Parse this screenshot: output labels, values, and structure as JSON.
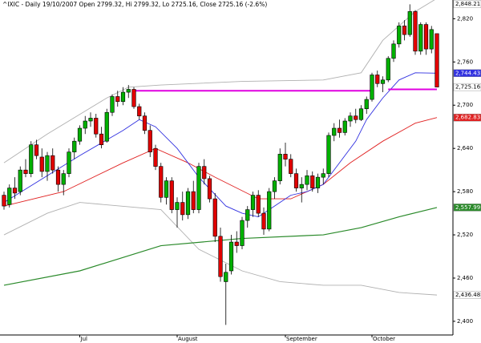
{
  "chart_data": {
    "type": "candlestick",
    "title": "^IXIC - Daily 19/10/2007 Open 2799.32, Hi 2799.32, Lo 2725.16, Close 2725.16 (-2.6%)",
    "categories": [
      null,
      null,
      null,
      null,
      null,
      null,
      null,
      null,
      null,
      null,
      null,
      null,
      null,
      null,
      "Jul",
      null,
      null,
      null,
      null,
      null,
      null,
      null,
      null,
      null,
      null,
      null,
      null,
      null,
      null,
      null,
      null,
      null,
      "August",
      null,
      null,
      null,
      null,
      null,
      null,
      null,
      null,
      null,
      null,
      null,
      null,
      null,
      null,
      null,
      null,
      null,
      null,
      null,
      "September",
      null,
      null,
      null,
      null,
      null,
      null,
      null,
      null,
      null,
      null,
      null,
      null,
      null,
      null,
      null,
      "October",
      null,
      null,
      null,
      null,
      null,
      null,
      null,
      null,
      null,
      null,
      null,
      null
    ],
    "open": [
      2575,
      2562,
      2585,
      2580,
      2610,
      2605,
      2645,
      2628,
      2608,
      2630,
      2610,
      2590,
      2605,
      2635,
      2650,
      2668,
      2678,
      2682,
      2660,
      2650,
      2690,
      2712,
      2705,
      2718,
      2722,
      2698,
      2685,
      2665,
      2640,
      2615,
      2572,
      2595,
      2555,
      2565,
      2548,
      2580,
      2555,
      2615,
      2598,
      2570,
      2518,
      2455,
      2470,
      2510,
      2505,
      2540,
      2555,
      2575,
      2550,
      2528,
      2580,
      2595,
      2632,
      2625,
      2605,
      2585,
      2590,
      2602,
      2585,
      2600,
      2605,
      2658,
      2668,
      2662,
      2678,
      2685,
      2680,
      2695,
      2708,
      2742,
      2730,
      2735,
      2765,
      2785,
      2810,
      2798,
      2830,
      2775,
      2812,
      2778,
      2799.32
    ],
    "high": [
      2580,
      2590,
      2600,
      2615,
      2625,
      2650,
      2652,
      2640,
      2635,
      2640,
      2615,
      2610,
      2640,
      2655,
      2672,
      2685,
      2690,
      2688,
      2670,
      2695,
      2715,
      2720,
      2725,
      2728,
      2725,
      2702,
      2690,
      2672,
      2645,
      2620,
      2600,
      2600,
      2572,
      2580,
      2585,
      2595,
      2620,
      2625,
      2602,
      2578,
      2530,
      2480,
      2520,
      2525,
      2545,
      2560,
      2580,
      2582,
      2558,
      2585,
      2600,
      2640,
      2648,
      2632,
      2612,
      2600,
      2610,
      2608,
      2605,
      2612,
      2662,
      2675,
      2680,
      2682,
      2690,
      2695,
      2700,
      2712,
      2745,
      2748,
      2740,
      2768,
      2790,
      2815,
      2818,
      2840,
      2832,
      2815,
      2815,
      2810,
      2799.32
    ],
    "low": [
      2555,
      2558,
      2570,
      2575,
      2600,
      2600,
      2625,
      2600,
      2595,
      2605,
      2580,
      2575,
      2600,
      2625,
      2645,
      2660,
      2670,
      2655,
      2640,
      2648,
      2685,
      2698,
      2700,
      2710,
      2695,
      2680,
      2660,
      2628,
      2610,
      2565,
      2562,
      2550,
      2530,
      2540,
      2542,
      2550,
      2550,
      2590,
      2565,
      2510,
      2455,
      2395,
      2465,
      2495,
      2500,
      2530,
      2545,
      2545,
      2520,
      2525,
      2570,
      2590,
      2615,
      2600,
      2580,
      2565,
      2582,
      2580,
      2578,
      2590,
      2600,
      2650,
      2655,
      2658,
      2670,
      2675,
      2678,
      2688,
      2705,
      2725,
      2718,
      2732,
      2760,
      2780,
      2790,
      2795,
      2770,
      2770,
      2770,
      2772,
      2725.16
    ],
    "close": [
      2560,
      2585,
      2578,
      2610,
      2605,
      2645,
      2630,
      2608,
      2630,
      2610,
      2590,
      2605,
      2635,
      2650,
      2668,
      2678,
      2682,
      2660,
      2645,
      2690,
      2712,
      2705,
      2718,
      2722,
      2698,
      2685,
      2665,
      2635,
      2615,
      2572,
      2595,
      2555,
      2565,
      2548,
      2580,
      2555,
      2615,
      2598,
      2570,
      2518,
      2462,
      2468,
      2510,
      2505,
      2540,
      2555,
      2575,
      2550,
      2528,
      2580,
      2595,
      2632,
      2625,
      2605,
      2585,
      2590,
      2602,
      2585,
      2600,
      2605,
      2658,
      2668,
      2662,
      2678,
      2685,
      2680,
      2695,
      2708,
      2742,
      2730,
      2735,
      2765,
      2785,
      2810,
      2798,
      2830,
      2775,
      2812,
      2778,
      2805,
      2725.16
    ],
    "up_color": "#00b000",
    "down_color": "#e00000",
    "overlays": [
      {
        "color": "#b0b0b0",
        "x": [
          0,
          8,
          19,
          23,
          29,
          44,
          59,
          66,
          70,
          76,
          80
        ],
        "values": [
          2620,
          2660,
          2710,
          2725,
          2728,
          2733,
          2735,
          2745,
          2790,
          2830,
          2848.21
        ]
      },
      {
        "color": "#b0b0b0",
        "x": [
          0,
          8,
          14,
          29,
          36,
          44,
          51,
          59,
          66,
          73,
          80
        ],
        "values": [
          2520,
          2550,
          2565,
          2555,
          2500,
          2470,
          2455,
          2450,
          2450,
          2440,
          2436.48
        ]
      },
      {
        "color": "#2a8a2a",
        "x": [
          0,
          14,
          29,
          44,
          59,
          66,
          73,
          80
        ],
        "values": [
          2450,
          2470,
          2505,
          2515,
          2520,
          2530,
          2545,
          2557.99
        ],
        "width": 1.2
      },
      {
        "color": "#e02020",
        "x": [
          0,
          11,
          22,
          28,
          34,
          39,
          47,
          53,
          59,
          64,
          70,
          76,
          80
        ],
        "values": [
          2560,
          2580,
          2620,
          2640,
          2620,
          2600,
          2570,
          2570,
          2590,
          2620,
          2650,
          2675,
          2682.83
        ]
      },
      {
        "color": "#3030e0",
        "x": [
          0,
          14,
          22,
          25,
          28,
          32,
          36,
          41,
          44,
          47,
          50,
          53,
          56,
          59,
          62,
          65,
          67,
          70,
          73,
          76,
          80
        ],
        "values": [
          2565,
          2630,
          2665,
          2680,
          2670,
          2640,
          2600,
          2560,
          2550,
          2545,
          2560,
          2575,
          2580,
          2590,
          2620,
          2650,
          2680,
          2710,
          2735,
          2745,
          2744.43
        ]
      },
      {
        "color": "#e000e0",
        "x": [
          24,
          68
        ],
        "values": [
          2720,
          2720
        ],
        "width": 2
      },
      {
        "color": "#e000e0",
        "x": [
          71,
          80
        ],
        "values": [
          2722,
          2722
        ],
        "width": 2
      }
    ],
    "price_labels": [
      {
        "value": 2848.21,
        "label": "2,848.21",
        "color": "#ffffff",
        "text_color": "#000000"
      },
      {
        "value": 2744.43,
        "label": "2,744.43",
        "color": "#3030e0",
        "text_color": "#ffffff"
      },
      {
        "value": 2725.16,
        "label": "2,725.16",
        "color": "#ffffff",
        "text_color": "#000000"
      },
      {
        "value": 2682.83,
        "label": "2,682.83",
        "color": "#e02020",
        "text_color": "#ffffff"
      },
      {
        "value": 2557.99,
        "label": "2,557.99",
        "color": "#2a8a2a",
        "text_color": "#ffffff"
      },
      {
        "value": 2436.48,
        "label": "2,436.48",
        "color": "#ffffff",
        "text_color": "#000000"
      }
    ],
    "ylim": [
      2381,
      2846
    ],
    "yticks": [
      {
        "value": 2820,
        "label": "2,820"
      },
      {
        "value": 2760,
        "label": "2,760"
      },
      {
        "value": 2700,
        "label": "2,700"
      },
      {
        "value": 2640,
        "label": "2,640"
      },
      {
        "value": 2580,
        "label": "2,580"
      },
      {
        "value": 2520,
        "label": "2,520"
      },
      {
        "value": 2460,
        "label": "2,460"
      },
      {
        "value": 2400,
        "label": "2,400"
      }
    ]
  }
}
